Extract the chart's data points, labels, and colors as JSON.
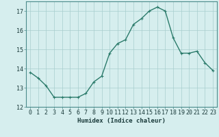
{
  "x": [
    0,
    1,
    2,
    3,
    4,
    5,
    6,
    7,
    8,
    9,
    10,
    11,
    12,
    13,
    14,
    15,
    16,
    17,
    18,
    19,
    20,
    21,
    22,
    23
  ],
  "y": [
    13.8,
    13.5,
    13.1,
    12.5,
    12.5,
    12.5,
    12.5,
    12.7,
    13.3,
    13.6,
    14.8,
    15.3,
    15.5,
    16.3,
    16.6,
    17.0,
    17.2,
    17.0,
    15.6,
    14.8,
    14.8,
    14.9,
    14.3,
    13.9
  ],
  "line_color": "#2a7a6a",
  "marker": "+",
  "marker_size": 3,
  "marker_lw": 0.8,
  "line_width": 1.0,
  "bg_color": "#d6eeee",
  "grid_color": "#a8cece",
  "xlabel": "Humidex (Indice chaleur)",
  "ylim": [
    12,
    17.5
  ],
  "xlim": [
    -0.5,
    23.5
  ],
  "yticks": [
    12,
    13,
    14,
    15,
    16,
    17
  ],
  "xtick_labels": [
    "0",
    "1",
    "2",
    "3",
    "4",
    "5",
    "6",
    "7",
    "8",
    "9",
    "10",
    "11",
    "12",
    "13",
    "14",
    "15",
    "16",
    "17",
    "18",
    "19",
    "20",
    "21",
    "22",
    "23"
  ],
  "xlabel_fontsize": 6.5,
  "tick_fontsize": 6.0,
  "spine_color": "#4a8a8a"
}
